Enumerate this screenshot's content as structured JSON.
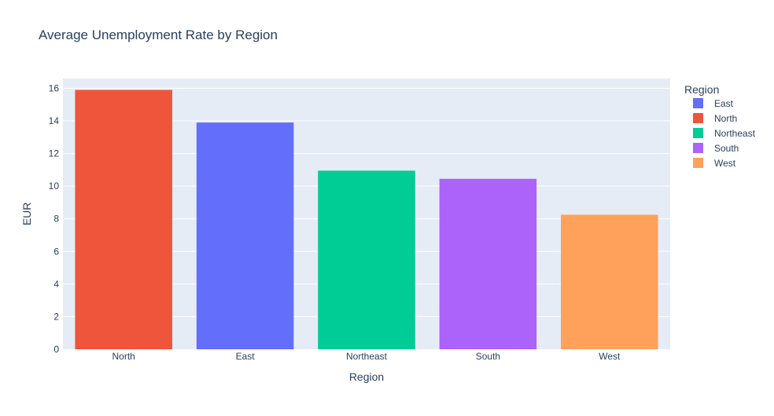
{
  "chart_data": {
    "type": "bar",
    "title": "Average Unemployment Rate by Region",
    "xlabel": "Region",
    "ylabel": "EUR",
    "categories": [
      "North",
      "East",
      "Northeast",
      "South",
      "West"
    ],
    "values": [
      15.9,
      13.9,
      10.95,
      10.45,
      8.25
    ],
    "bar_colors": [
      "#EF553B",
      "#636EFA",
      "#00CC96",
      "#AB63FA",
      "#FFA15A"
    ],
    "ylim": [
      0,
      16.6
    ],
    "yticks": [
      0,
      2,
      4,
      6,
      8,
      10,
      12,
      14,
      16
    ],
    "grid": true,
    "legend": {
      "title": "Region",
      "placement": "right",
      "entries": [
        {
          "name": "East",
          "color": "#636EFA"
        },
        {
          "name": "North",
          "color": "#EF553B"
        },
        {
          "name": "Northeast",
          "color": "#00CC96"
        },
        {
          "name": "South",
          "color": "#AB63FA"
        },
        {
          "name": "West",
          "color": "#FFA15A"
        }
      ]
    },
    "plot_bg": "#E5ECF6",
    "text_color": "#2a3f5f"
  }
}
